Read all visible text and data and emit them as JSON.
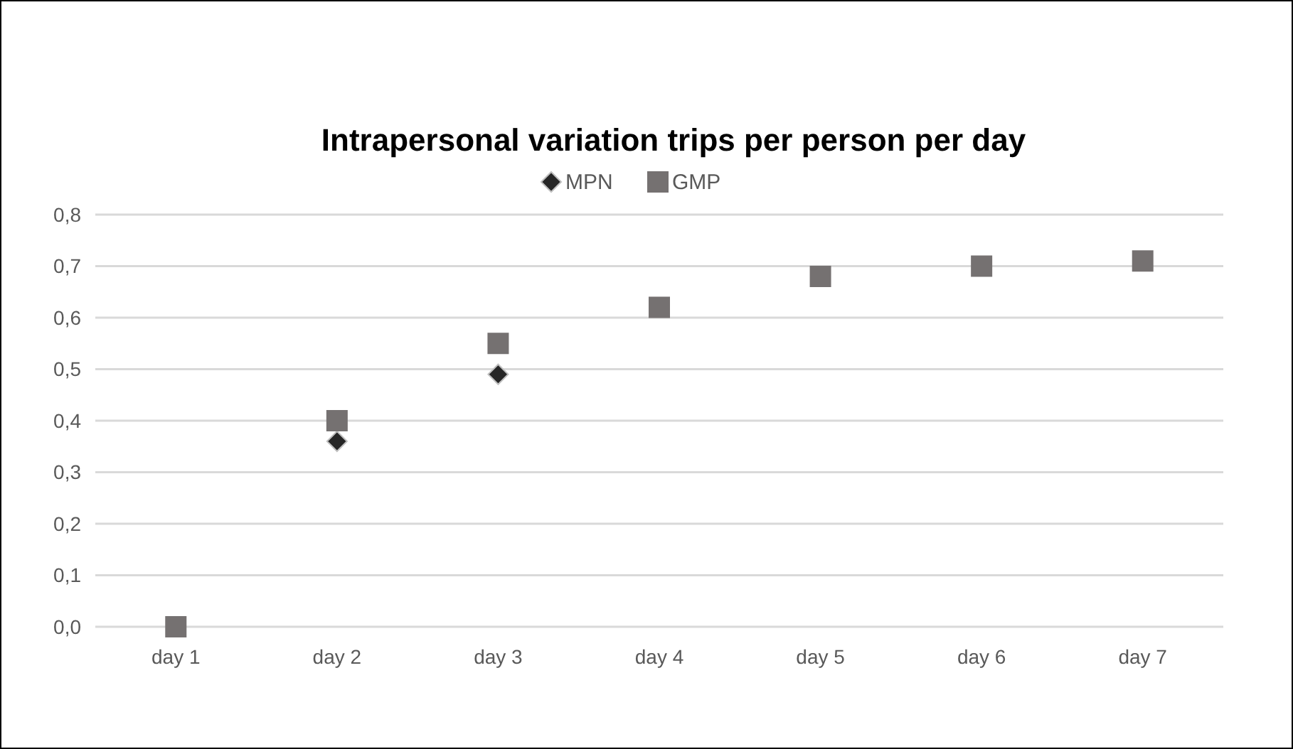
{
  "chart_data": {
    "type": "scatter",
    "title": "Intrapersonal variation trips per person per day",
    "categories": [
      "day 1",
      "day 2",
      "day 3",
      "day 4",
      "day 5",
      "day 6",
      "day 7"
    ],
    "series": [
      {
        "name": "MPN",
        "color": "#262626",
        "marker": "diamond",
        "values": [
          null,
          0.36,
          0.49,
          null,
          null,
          null,
          null
        ]
      },
      {
        "name": "GMP",
        "color": "#757171",
        "marker": "square",
        "values": [
          0,
          0.4,
          0.55,
          0.62,
          0.68,
          0.7,
          0.71
        ]
      }
    ],
    "ylim": [
      0,
      0.8
    ],
    "yticks": [
      {
        "value": 0,
        "label": "0,0"
      },
      {
        "value": 0.1,
        "label": "0,1"
      },
      {
        "value": 0.2,
        "label": "0,2"
      },
      {
        "value": 0.3,
        "label": "0,3"
      },
      {
        "value": 0.4,
        "label": "0,4"
      },
      {
        "value": 0.5,
        "label": "0,5"
      },
      {
        "value": 0.6,
        "label": "0,6"
      },
      {
        "value": 0.7,
        "label": "0,7"
      },
      {
        "value": 0.8,
        "label": "0,8"
      }
    ],
    "grid": "y",
    "legend": "top"
  }
}
